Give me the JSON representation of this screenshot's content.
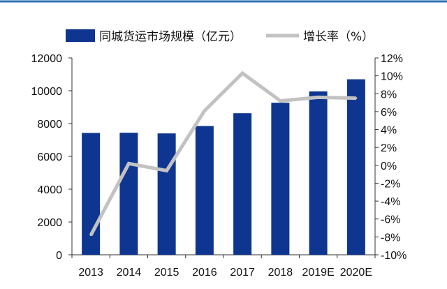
{
  "chart_data": {
    "type": "bar",
    "categories": [
      "2013",
      "2014",
      "2015",
      "2016",
      "2017",
      "2018",
      "2019E",
      "2020E"
    ],
    "series": [
      {
        "name": "同城货运市场规模（亿元）",
        "type": "bar",
        "axis": "left",
        "values": [
          7430,
          7440,
          7400,
          7850,
          8630,
          9270,
          9960,
          10700
        ]
      },
      {
        "name": "增长率（%）",
        "type": "line",
        "axis": "right",
        "values": [
          -7.8,
          0.2,
          -0.6,
          6.1,
          10.3,
          7.2,
          7.6,
          7.5
        ]
      }
    ],
    "y_left": {
      "min": 0,
      "max": 12000,
      "ticks": [
        "0",
        "2000",
        "4000",
        "6000",
        "8000",
        "10000",
        "12000"
      ]
    },
    "y_right": {
      "min": -10,
      "max": 12,
      "ticks": [
        "-10%",
        "-8%",
        "-6%",
        "-4%",
        "-2%",
        "0%",
        "2%",
        "4%",
        "6%",
        "8%",
        "10%",
        "12%"
      ]
    },
    "legend_position": "top",
    "grid": false,
    "colors": {
      "bar": "#0e3590",
      "line": "#c2c2c2",
      "top_rule": "#2f72b4"
    }
  }
}
